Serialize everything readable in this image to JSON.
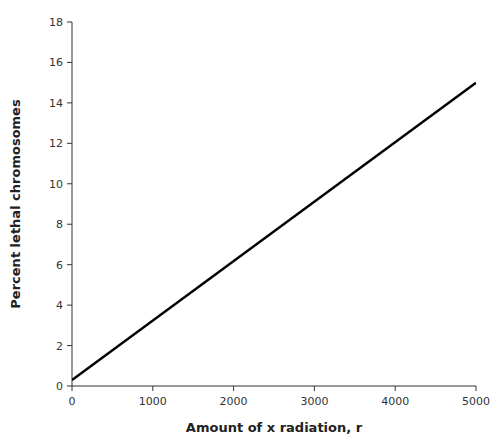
{
  "chart_data": {
    "type": "line",
    "x": [
      0,
      5000
    ],
    "values": [
      0.3,
      15.0
    ],
    "color": "#000000",
    "xlabel": "Amount of x radiation, r",
    "ylabel": "Percent lethal chromosomes",
    "xlim": [
      0,
      5000
    ],
    "ylim": [
      0,
      18
    ],
    "xticks": [
      0,
      1000,
      2000,
      3000,
      4000,
      5000
    ],
    "yticks": [
      0,
      2,
      4,
      6,
      8,
      10,
      12,
      14,
      16,
      18
    ],
    "grid": false
  }
}
